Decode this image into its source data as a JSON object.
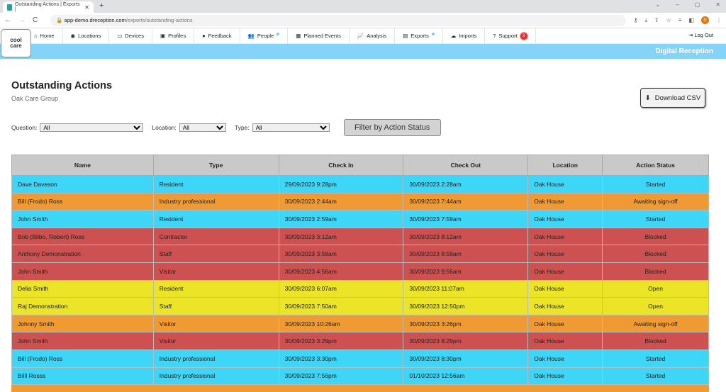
{
  "browser": {
    "tab_title": "Outstanding Actions | Exports |",
    "url_host": "app-demo.dreception.com",
    "url_path": "/exports/outstanding-actions",
    "profile_initial": "D"
  },
  "logo_text": [
    "cool",
    "care"
  ],
  "menu": [
    {
      "label": "Home",
      "icon": "⌂"
    },
    {
      "label": "Locations",
      "icon": "◉"
    },
    {
      "label": "Devices",
      "icon": "▭"
    },
    {
      "label": "Profiles",
      "icon": "▣"
    },
    {
      "label": "Feedback",
      "icon": "●"
    },
    {
      "label": "People",
      "icon": "👥",
      "dot": true
    },
    {
      "label": "Planned Events",
      "icon": "▦"
    },
    {
      "label": "Analysis",
      "icon": "📈"
    },
    {
      "label": "Exports",
      "icon": "▤",
      "dot": true
    },
    {
      "label": "Imports",
      "icon": "☁"
    },
    {
      "label": "Support",
      "icon": "?",
      "badge": "3"
    }
  ],
  "logout": "Log Out",
  "banner": "Digital Reception",
  "page": {
    "title": "Outstanding Actions",
    "subtitle": "Oak Care Group",
    "download": "Download CSV"
  },
  "filters": {
    "question_label": "Question:",
    "question": "All",
    "location_label": "Location:",
    "location": "All",
    "type_label": "Type:",
    "type": "All",
    "button": "Filter by Action Status"
  },
  "table": {
    "headers": [
      "Name",
      "Type",
      "Check In",
      "Check Out",
      "Location",
      "Action Status"
    ],
    "rows": [
      [
        "Dave Daveson",
        "Resident",
        "29/09/2023 9:28pm",
        "30/09/2023 2:28am",
        "Oak House",
        "Started"
      ],
      [
        "Bill (Frodo) Ross",
        "Industry professional",
        "30/09/2023 2:44am",
        "30/09/2023 7:44am",
        "Oak House",
        "Awaiting sign-off"
      ],
      [
        "John Smith",
        "Resident",
        "30/09/2023 2:59am",
        "30/09/2023 7:59am",
        "Oak House",
        "Started"
      ],
      [
        "Bob (Bilbo, Robert) Ross",
        "Contractor",
        "30/09/2023 3:12am",
        "30/09/2023 8:12am",
        "Oak House",
        "Blocked"
      ],
      [
        "Anthony Demonstration",
        "Staff",
        "30/09/2023 3:58am",
        "30/09/2023 8:58am",
        "Oak House",
        "Blocked"
      ],
      [
        "John Smith",
        "Visitor",
        "30/09/2023 4:56am",
        "30/09/2023 9:56am",
        "Oak House",
        "Blocked"
      ],
      [
        "Delia Smith",
        "Resident",
        "30/09/2023 6:07am",
        "30/09/2023 11:07am",
        "Oak House",
        "Open"
      ],
      [
        "Raj Demonstration",
        "Staff",
        "30/09/2023 7:50am",
        "30/09/2023 12:50pm",
        "Oak House",
        "Open"
      ],
      [
        "Johnny Smith",
        "Visitor",
        "30/09/2023 10:26am",
        "30/09/2023 3:26pm",
        "Oak House",
        "Awaiting sign-off"
      ],
      [
        "John Smith",
        "Visitor",
        "30/09/2023 3:29pm",
        "30/09/2023 8:29pm",
        "Oak House",
        "Blocked"
      ],
      [
        "Bill (Frodo) Ross",
        "Industry professional",
        "30/09/2023 3:30pm",
        "30/09/2023 8:30pm",
        "Oak House",
        "Started"
      ],
      [
        "Billl Rosss",
        "Industry professional",
        "30/09/2023 7:56pm",
        "01/10/2023 12:56am",
        "Oak House",
        "Started"
      ]
    ]
  }
}
